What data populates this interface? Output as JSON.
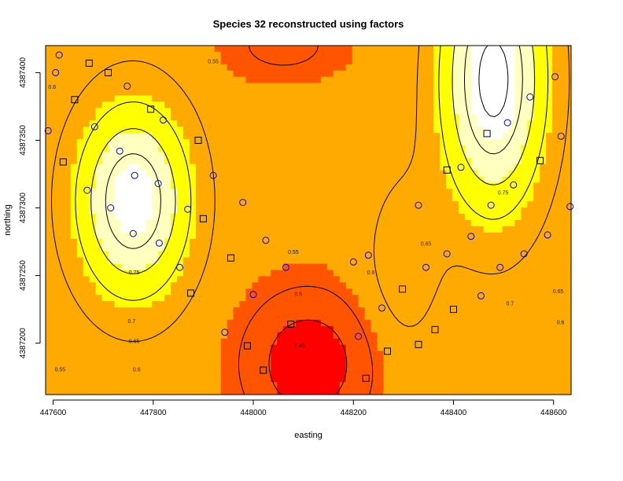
{
  "chart_data": {
    "type": "heatmap",
    "title": "Species 32 reconstructed using factors",
    "xlabel": "easting",
    "ylabel": "northing",
    "xlim": [
      447585,
      448635
    ],
    "ylim": [
      4387162,
      4387420
    ],
    "x_ticks": [
      447600,
      447800,
      448000,
      448200,
      448400,
      448600
    ],
    "y_ticks": [
      4387200,
      4387250,
      4387300,
      4387350,
      4387400
    ],
    "color_scale": [
      "#ff0000",
      "#ff5500",
      "#ffaa00",
      "#ffff00",
      "#ffffbf",
      "#ffffff"
    ],
    "value_range": [
      0.43,
      0.84
    ],
    "field_peaks": [
      {
        "x": 447760,
        "y": 4387305,
        "value": 0.8,
        "sx": 110,
        "sy": 70
      },
      {
        "x": 448480,
        "y": 4387395,
        "value": 0.82,
        "sx": 100,
        "sy": 95
      },
      {
        "x": 448110,
        "y": 4387185,
        "value": 0.45,
        "sx": 110,
        "sy": 45
      },
      {
        "x": 448060,
        "y": 4387420,
        "value": 0.54,
        "sx": 120,
        "sy": 25
      },
      {
        "x": 448300,
        "y": 4387260,
        "value": 0.62,
        "sx": 80,
        "sy": 70
      }
    ],
    "contour_labels": [
      {
        "text": "0.6",
        "x": 447598,
        "y": 4387388
      },
      {
        "text": "0.55",
        "x": 447920,
        "y": 4387407
      },
      {
        "text": "0.75",
        "x": 447762,
        "y": 4387251
      },
      {
        "text": "0.7",
        "x": 447757,
        "y": 4387215
      },
      {
        "text": "0.65",
        "x": 447762,
        "y": 4387200
      },
      {
        "text": "0.6",
        "x": 447767,
        "y": 4387179
      },
      {
        "text": "0.55",
        "x": 447614,
        "y": 4387179
      },
      {
        "text": "0.55",
        "x": 448080,
        "y": 4387266
      },
      {
        "text": "0.5",
        "x": 448090,
        "y": 4387235
      },
      {
        "text": "0.45",
        "x": 448093,
        "y": 4387197
      },
      {
        "text": "0.6",
        "x": 448235,
        "y": 4387251
      },
      {
        "text": "0.65",
        "x": 448345,
        "y": 4387272
      },
      {
        "text": "0.75",
        "x": 448499,
        "y": 4387310
      },
      {
        "text": "0.7",
        "x": 448513,
        "y": 4387228
      },
      {
        "text": "0.65",
        "x": 448609,
        "y": 4387237
      },
      {
        "text": "0.6",
        "x": 448614,
        "y": 4387214
      }
    ],
    "series": [
      {
        "marker": "circle",
        "color": "#0000ff",
        "points": [
          [
            447590,
            4387357
          ],
          [
            447612,
            4387413
          ],
          [
            447605,
            4387400
          ],
          [
            447683,
            4387360
          ],
          [
            447733,
            4387342
          ],
          [
            447748,
            4387390
          ],
          [
            447668,
            4387313
          ],
          [
            447715,
            4387300
          ],
          [
            447763,
            4387324
          ],
          [
            447820,
            4387365
          ],
          [
            447810,
            4387318
          ],
          [
            447760,
            4387281
          ],
          [
            447812,
            4387274
          ],
          [
            447853,
            4387256
          ],
          [
            447869,
            4387299
          ],
          [
            447920,
            4387324
          ],
          [
            447943,
            4387208
          ],
          [
            447979,
            4387304
          ],
          [
            448000,
            4387236
          ],
          [
            448025,
            4387276
          ],
          [
            448065,
            4387256
          ],
          [
            448200,
            4387260
          ],
          [
            448210,
            4387205
          ],
          [
            448230,
            4387265
          ],
          [
            448257,
            4387226
          ],
          [
            448330,
            4387302
          ],
          [
            448345,
            4387256
          ],
          [
            448387,
            4387266
          ],
          [
            448415,
            4387330
          ],
          [
            448435,
            4387279
          ],
          [
            448455,
            4387235
          ],
          [
            448475,
            4387302
          ],
          [
            448493,
            4387256
          ],
          [
            448508,
            4387363
          ],
          [
            448520,
            4387317
          ],
          [
            448541,
            4387266
          ],
          [
            448553,
            4387382
          ],
          [
            448588,
            4387280
          ],
          [
            448603,
            4387397
          ],
          [
            448615,
            4387353
          ],
          [
            448633,
            4387301
          ]
        ]
      },
      {
        "marker": "square",
        "color": "#000000",
        "points": [
          [
            447620,
            4387334
          ],
          [
            447643,
            4387380
          ],
          [
            447672,
            4387407
          ],
          [
            447710,
            4387400
          ],
          [
            447795,
            4387373
          ],
          [
            447890,
            4387350
          ],
          [
            447875,
            4387237
          ],
          [
            447900,
            4387292
          ],
          [
            447955,
            4387263
          ],
          [
            447988,
            4387198
          ],
          [
            448020,
            4387180
          ],
          [
            448075,
            4387214
          ],
          [
            448225,
            4387174
          ],
          [
            448268,
            4387194
          ],
          [
            448298,
            4387240
          ],
          [
            448330,
            4387199
          ],
          [
            448387,
            4387328
          ],
          [
            448363,
            4387210
          ],
          [
            448400,
            4387225
          ],
          [
            448467,
            4387355
          ],
          [
            448573,
            4387335
          ]
        ]
      }
    ]
  }
}
